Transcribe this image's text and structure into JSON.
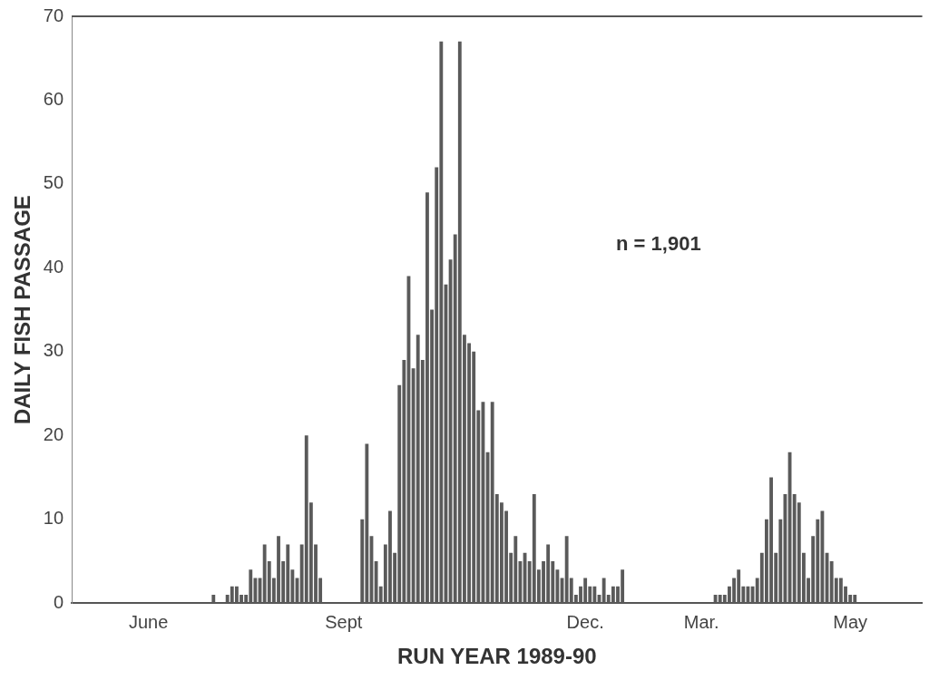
{
  "chart_data": {
    "type": "bar",
    "xlabel": "RUN YEAR 1989-90",
    "ylabel": "DAILY FISH PASSAGE",
    "annotations": [
      "n = 1,901"
    ],
    "categories": [
      null,
      null,
      null,
      null,
      null,
      null,
      null,
      null,
      null,
      null,
      null,
      null,
      null,
      null,
      null,
      null,
      "June",
      null,
      null,
      null,
      null,
      null,
      null,
      null,
      null,
      null,
      null,
      null,
      null,
      null,
      null,
      null,
      null,
      null,
      null,
      null,
      null,
      null,
      null,
      null,
      null,
      null,
      null,
      null,
      null,
      null,
      null,
      null,
      null,
      null,
      null,
      null,
      null,
      null,
      null,
      null,
      null,
      null,
      "Sept",
      null,
      null,
      null,
      null,
      null,
      null,
      null,
      null,
      null,
      null,
      null,
      null,
      null,
      null,
      null,
      null,
      null,
      null,
      null,
      null,
      null,
      null,
      null,
      null,
      null,
      null,
      null,
      null,
      null,
      null,
      null,
      null,
      null,
      null,
      null,
      null,
      null,
      null,
      null,
      null,
      null,
      null,
      null,
      null,
      null,
      null,
      null,
      null,
      null,
      null,
      null,
      "Dec.",
      null,
      null,
      null,
      null,
      null,
      null,
      null,
      null,
      null,
      null,
      null,
      null,
      null,
      null,
      null,
      null,
      null,
      null,
      null,
      null,
      null,
      null,
      null,
      null,
      "Mar.",
      null,
      null,
      null,
      null,
      null,
      null,
      null,
      null,
      null,
      null,
      null,
      null,
      null,
      null,
      null,
      null,
      null,
      null,
      null,
      null,
      null,
      null,
      null,
      null,
      null,
      null,
      null,
      null,
      null,
      null,
      null,
      "May",
      null,
      null,
      null,
      null,
      null,
      null,
      null,
      null,
      null,
      null,
      null,
      null,
      null,
      null,
      null
    ],
    "series": [
      {
        "color": "#5a5a5a",
        "values": [
          null,
          null,
          null,
          null,
          null,
          null,
          null,
          null,
          null,
          null,
          null,
          null,
          null,
          null,
          null,
          null,
          0,
          0,
          0,
          0,
          0,
          0,
          0,
          0,
          0,
          0,
          0,
          0,
          0,
          0,
          1,
          0,
          0,
          1,
          2,
          2,
          1,
          1,
          4,
          3,
          3,
          7,
          5,
          3,
          8,
          5,
          7,
          4,
          3,
          7,
          20,
          12,
          7,
          3,
          0,
          0,
          0,
          0,
          0,
          0,
          0,
          0,
          10,
          19,
          8,
          5,
          2,
          7,
          11,
          6,
          26,
          29,
          39,
          28,
          32,
          29,
          49,
          35,
          52,
          67,
          38,
          41,
          44,
          67,
          32,
          31,
          30,
          23,
          24,
          18,
          24,
          13,
          12,
          11,
          6,
          8,
          5,
          6,
          5,
          13,
          4,
          5,
          7,
          5,
          4,
          3,
          8,
          3,
          1,
          2,
          3,
          2,
          2,
          1,
          3,
          1,
          2,
          2,
          4,
          0,
          0,
          0,
          0,
          0,
          0,
          0,
          0,
          0,
          0,
          0,
          0,
          0,
          0,
          0,
          0,
          0,
          0,
          0,
          1,
          1,
          1,
          2,
          3,
          4,
          2,
          2,
          2,
          3,
          6,
          10,
          15,
          6,
          10,
          13,
          18,
          13,
          12,
          6,
          3,
          8,
          10,
          11,
          6,
          5,
          3,
          3,
          2,
          1,
          1,
          0,
          null,
          null,
          null,
          null,
          null,
          null,
          null,
          null,
          null,
          null,
          null,
          null,
          null
        ]
      }
    ],
    "ylim": [
      0,
      70
    ],
    "yticks": [
      0,
      10,
      20,
      30,
      40,
      50,
      60,
      70
    ],
    "grid": false,
    "legend": false
  }
}
